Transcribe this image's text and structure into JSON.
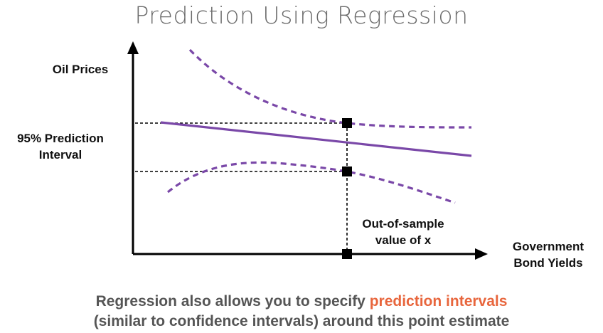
{
  "title": "Prediction Using Regression",
  "y_axis_label": "Oil Prices",
  "interval_label_line1": "95% Prediction",
  "interval_label_line2": "Interval",
  "point_label_line1": "Out-of-sample",
  "point_label_line2": "value of x",
  "x_axis_label_line1": "Government",
  "x_axis_label_line2": "Bond Yields",
  "caption": {
    "line1_prefix": "Regression also allows you to specify ",
    "line1_highlight": "prediction intervals",
    "line2": "(similar to confidence intervals) around this point estimate"
  },
  "colors": {
    "regression_line": "#7a48a8",
    "interval_curves": "#7a48a8",
    "axes": "#000000",
    "title": "#6b6b6b",
    "caption": "#555555",
    "highlight": "#e8663d"
  }
}
